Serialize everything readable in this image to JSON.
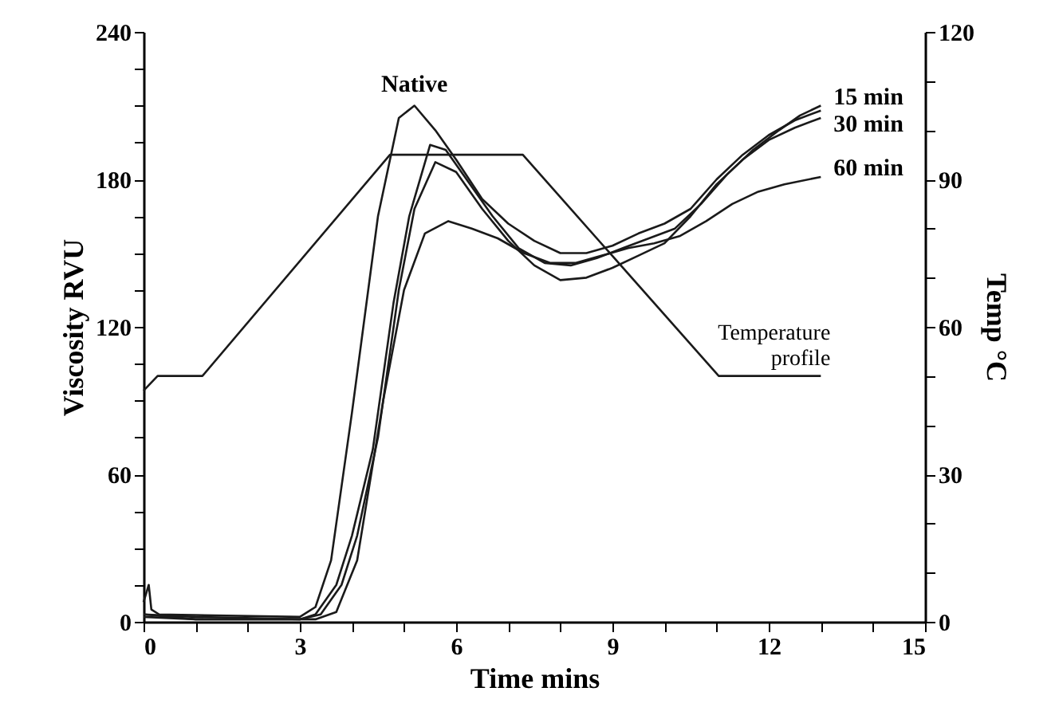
{
  "chart_data": {
    "type": "line",
    "xlabel": "Time mins",
    "ylabel": "Viscosity RVU",
    "y2label": "Temp °C",
    "line_style": "solid",
    "xlim": [
      0,
      15
    ],
    "xticks": [
      0,
      {
        "value": 1,
        "label": null
      },
      {
        "value": 2,
        "label": null
      },
      3,
      {
        "value": 4,
        "label": null
      },
      {
        "value": 5,
        "label": null
      },
      6,
      {
        "value": 7,
        "label": null
      },
      {
        "value": 8,
        "label": null
      },
      9,
      {
        "value": 10,
        "label": null
      },
      {
        "value": 11,
        "label": null
      },
      12,
      {
        "value": 13,
        "label": null
      },
      {
        "value": 14,
        "label": null
      },
      15
    ],
    "ylim": [
      0,
      240
    ],
    "yticks": [
      0,
      {
        "value": 15,
        "label": null
      },
      {
        "value": 30,
        "label": null
      },
      {
        "value": 45,
        "label": null
      },
      60,
      {
        "value": 75,
        "label": null
      },
      {
        "value": 90,
        "label": null
      },
      {
        "value": 105,
        "label": null
      },
      120,
      {
        "value": 135,
        "label": null
      },
      {
        "value": 150,
        "label": null
      },
      {
        "value": 165,
        "label": null
      },
      180,
      {
        "value": 195,
        "label": null
      },
      {
        "value": 210,
        "label": null
      },
      {
        "value": 225,
        "label": null
      },
      240
    ],
    "y2lim": [
      0,
      120
    ],
    "y2ticks": [
      0,
      {
        "value": 10,
        "label": null
      },
      {
        "value": 20,
        "label": null
      },
      30,
      {
        "value": 40,
        "label": null
      },
      {
        "value": 50,
        "label": null
      },
      60,
      {
        "value": 70,
        "label": null
      },
      {
        "value": 80,
        "label": null
      },
      90,
      {
        "value": 100,
        "label": null
      },
      {
        "value": 110,
        "label": null
      },
      120
    ],
    "series": [
      {
        "name": "Native",
        "color": "#1a1a1a",
        "x": [
          0,
          0.1,
          0.15,
          0.3,
          3,
          3.3,
          3.6,
          4,
          4.5,
          4.9,
          5.2,
          5.6,
          6,
          6.5,
          7,
          7.5,
          8,
          8.5,
          9,
          9.5,
          10,
          10.5,
          11,
          11.5,
          12,
          12.5,
          13
        ],
        "values": [
          8,
          15,
          5,
          3,
          2,
          6,
          25,
          85,
          165,
          205,
          210,
          200,
          188,
          172,
          162,
          155,
          150,
          150,
          153,
          158,
          162,
          168,
          180,
          190,
          198,
          204,
          208
        ]
      },
      {
        "name": "15 min",
        "color": "#1a1a1a",
        "x": [
          0,
          1,
          3,
          3.3,
          3.7,
          4,
          4.4,
          4.8,
          5.1,
          5.5,
          5.8,
          6.2,
          6.7,
          7.2,
          7.7,
          8.2,
          8.7,
          9.2,
          9.7,
          10.2,
          10.7,
          11.2,
          11.7,
          12.2,
          12.6,
          13
        ],
        "values": [
          3,
          2,
          1,
          3,
          15,
          35,
          70,
          130,
          165,
          194,
          192,
          180,
          165,
          152,
          146,
          145,
          148,
          152,
          156,
          160,
          170,
          182,
          192,
          200,
          206,
          210
        ]
      },
      {
        "name": "30 min",
        "color": "#1a1a1a",
        "x": [
          0,
          1,
          3,
          3.4,
          3.8,
          4.1,
          4.5,
          4.9,
          5.2,
          5.6,
          6,
          6.5,
          7,
          7.5,
          8,
          8.5,
          9,
          9.5,
          10,
          10.5,
          11,
          11.5,
          12,
          12.5,
          13
        ],
        "values": [
          2,
          1,
          1,
          3,
          15,
          35,
          75,
          135,
          168,
          187,
          183,
          168,
          155,
          145,
          139,
          140,
          144,
          149,
          154,
          165,
          178,
          188,
          196,
          201,
          205
        ]
      },
      {
        "name": "60 min",
        "color": "#1a1a1a",
        "x": [
          0,
          1,
          3.3,
          3.7,
          4.1,
          4.6,
          5,
          5.4,
          5.85,
          6.3,
          6.8,
          7.3,
          7.8,
          8.3,
          8.8,
          9.3,
          9.8,
          10.3,
          10.8,
          11.3,
          11.8,
          12.3,
          13
        ],
        "values": [
          3,
          1,
          1,
          4,
          25,
          90,
          135,
          158,
          163,
          160,
          156,
          150,
          146,
          146,
          149,
          152,
          154,
          157,
          163,
          170,
          175,
          178,
          181
        ]
      },
      {
        "name": "Temperature profile",
        "color": "#1a1a1a",
        "axis": "y2",
        "x": [
          0,
          0.27,
          1.13,
          4.73,
          7.28,
          11.04,
          13
        ],
        "values": [
          47,
          50,
          50,
          95,
          95,
          50,
          50
        ]
      }
    ]
  }
}
